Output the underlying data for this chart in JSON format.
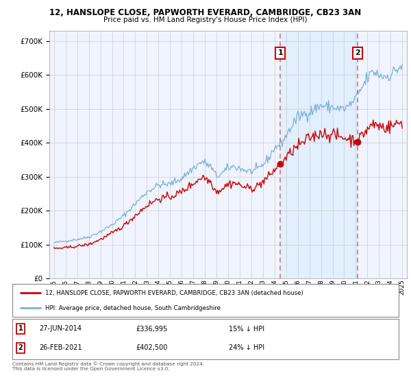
{
  "title1": "12, HANSLOPE CLOSE, PAPWORTH EVERARD, CAMBRIDGE, CB23 3AN",
  "title2": "Price paid vs. HM Land Registry's House Price Index (HPI)",
  "legend_house": "12, HANSLOPE CLOSE, PAPWORTH EVERARD, CAMBRIDGE, CB23 3AN (detached house)",
  "legend_hpi": "HPI: Average price, detached house, South Cambridgeshire",
  "sale1_date": "27-JUN-2014",
  "sale1_price": "£336,995",
  "sale1_hpi": "15% ↓ HPI",
  "sale1_x": 2014.49,
  "sale1_y": 336995,
  "sale2_date": "26-FEB-2021",
  "sale2_price": "£402,500",
  "sale2_hpi": "24% ↓ HPI",
  "sale2_x": 2021.15,
  "sale2_y": 402500,
  "footer": "Contains HM Land Registry data © Crown copyright and database right 2024.\nThis data is licensed under the Open Government Licence v3.0.",
  "ylim": [
    0,
    730000
  ],
  "xlim_start": 1994.6,
  "xlim_end": 2025.4,
  "house_color": "#cc0000",
  "hpi_color": "#7ab0d4",
  "vline_color": "#cc6666",
  "shade_color": "#ddeeff",
  "grid_color": "#cccccc",
  "background_color": "#ffffff",
  "plot_bg_color": "#f0f4ff"
}
